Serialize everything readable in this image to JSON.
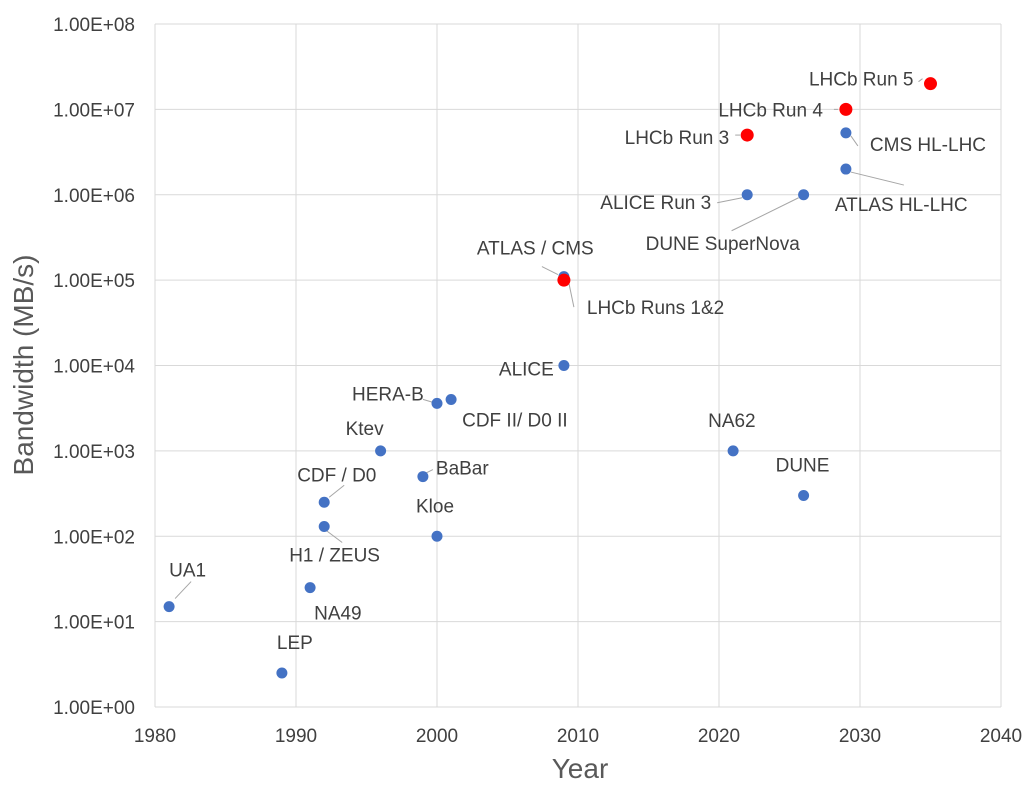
{
  "chart_data": {
    "type": "scatter",
    "xlabel": "Year",
    "ylabel": "Bandwidth (MB/s)",
    "xlim": [
      1980,
      2040
    ],
    "ylim": [
      1,
      100000000
    ],
    "yscale": "log",
    "grid": true,
    "x_ticks": [
      "1980",
      "1990",
      "2000",
      "2010",
      "2020",
      "2030",
      "2040"
    ],
    "y_ticks": [
      "1.00E+00",
      "1.00E+01",
      "1.00E+02",
      "1.00E+03",
      "1.00E+04",
      "1.00E+05",
      "1.00E+06",
      "1.00E+07",
      "1.00E+08"
    ],
    "colors": {
      "blue": "#4472c4",
      "red": "#ff0000"
    },
    "points": [
      {
        "label": "UA1",
        "x": 1981,
        "y": 15,
        "color": "blue"
      },
      {
        "label": "LEP",
        "x": 1989,
        "y": 2.5,
        "color": "blue"
      },
      {
        "label": "NA49",
        "x": 1991,
        "y": 25,
        "color": "blue"
      },
      {
        "label": "H1 / ZEUS",
        "x": 1992,
        "y": 130,
        "color": "blue"
      },
      {
        "label": "CDF / D0",
        "x": 1992,
        "y": 250,
        "color": "blue"
      },
      {
        "label": "Ktev",
        "x": 1996,
        "y": 1000,
        "color": "blue"
      },
      {
        "label": "BaBar",
        "x": 1999,
        "y": 500,
        "color": "blue"
      },
      {
        "label": "Kloe",
        "x": 2000,
        "y": 100,
        "color": "blue"
      },
      {
        "label": "HERA-B",
        "x": 2000,
        "y": 3600,
        "color": "blue"
      },
      {
        "label": "CDF II/ D0 II",
        "x": 2001,
        "y": 4000,
        "color": "blue"
      },
      {
        "label": "ALICE",
        "x": 2009,
        "y": 10000,
        "color": "blue"
      },
      {
        "label": "ATLAS / CMS",
        "x": 2009,
        "y": 110000,
        "color": "blue"
      },
      {
        "label": "LHCb Runs 1&2",
        "x": 2009,
        "y": 100000,
        "color": "red"
      },
      {
        "label": "NA62",
        "x": 2021,
        "y": 1000,
        "color": "blue"
      },
      {
        "label": "DUNE",
        "x": 2026,
        "y": 300,
        "color": "blue"
      },
      {
        "label": "ALICE Run 3",
        "x": 2022,
        "y": 1000000,
        "color": "blue"
      },
      {
        "label": "DUNE SuperNova",
        "x": 2026,
        "y": 1000000,
        "color": "blue"
      },
      {
        "label": "ATLAS HL-LHC",
        "x": 2029,
        "y": 2000000,
        "color": "blue"
      },
      {
        "label": "CMS HL-LHC",
        "x": 2029,
        "y": 5300000,
        "color": "blue"
      },
      {
        "label": "LHCb Run 3",
        "x": 2022,
        "y": 5000000,
        "color": "red"
      },
      {
        "label": "LHCb Run 4",
        "x": 2029,
        "y": 10000000,
        "color": "red"
      },
      {
        "label": "LHCb Run 5",
        "x": 2035,
        "y": 20000000,
        "color": "red"
      }
    ]
  }
}
